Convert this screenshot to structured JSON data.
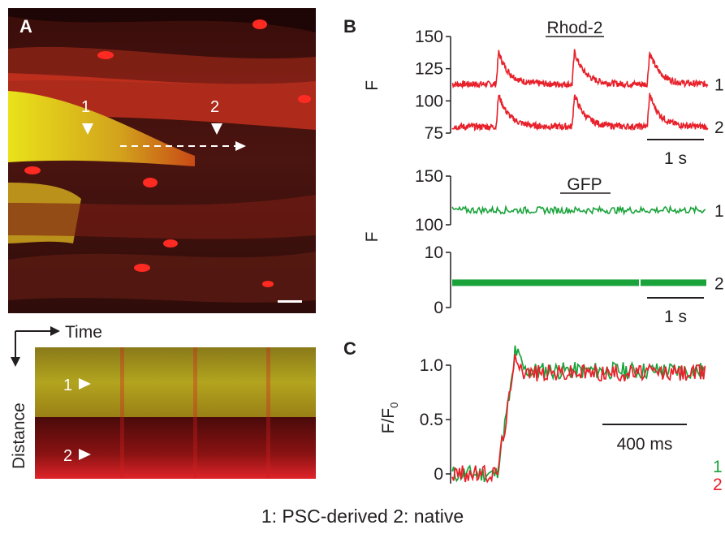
{
  "panels": {
    "A": {
      "label": "A",
      "cell1": "1",
      "cell2": "2",
      "kymo_time": "Time",
      "kymo_distance": "Distance"
    },
    "B": {
      "label": "B"
    },
    "C": {
      "label": "C"
    }
  },
  "caption": "1: PSC-derived   2: native",
  "colors": {
    "red": "#e8202a",
    "green": "#1aa33b",
    "axis": "#231f20"
  },
  "chart_data": [
    {
      "type": "line",
      "title": "Rhod-2",
      "ylabel": "F",
      "ylim": [
        75,
        150
      ],
      "yticks": [
        "150",
        "125",
        "100",
        "75"
      ],
      "xlim_s": [
        0,
        3.2
      ],
      "scalebar": "1 s",
      "series": [
        {
          "name": "1",
          "color": "#e8202a",
          "baseline": 113,
          "peak": 138,
          "stim_times_s": [
            0.55,
            1.5,
            2.44
          ]
        },
        {
          "name": "2",
          "color": "#e8202a",
          "baseline": 80,
          "peak": 105,
          "stim_times_s": [
            0.55,
            1.5,
            2.44
          ]
        }
      ]
    },
    {
      "type": "line",
      "title": "GFP",
      "ylabel": "F",
      "ylim": [
        100,
        150
      ],
      "yticks": [
        "150",
        "100"
      ],
      "series": [
        {
          "name": "1",
          "color": "#1aa33b",
          "baseline": 115
        }
      ]
    },
    {
      "type": "line",
      "ylim": [
        0,
        10
      ],
      "yticks": [
        "10",
        "0"
      ],
      "scalebar": "1 s",
      "series": [
        {
          "name": "2",
          "color": "#1aa33b",
          "baseline": 4.5
        }
      ]
    },
    {
      "type": "line",
      "ylabel": "F/F0",
      "ylabel_main": "F/F",
      "ylabel_sub": "0",
      "ylim": [
        -0.1,
        1.0
      ],
      "yticks": [
        "1.0",
        "0.5",
        "0"
      ],
      "scalebar": "400 ms",
      "series": [
        {
          "name": "1",
          "color": "#1aa33b",
          "rise_ms": 60,
          "peak": 0.95,
          "decay_tau_ms": 180
        },
        {
          "name": "2",
          "color": "#e8202a",
          "rise_ms": 60,
          "peak": 0.93,
          "decay_tau_ms": 180
        }
      ]
    }
  ]
}
